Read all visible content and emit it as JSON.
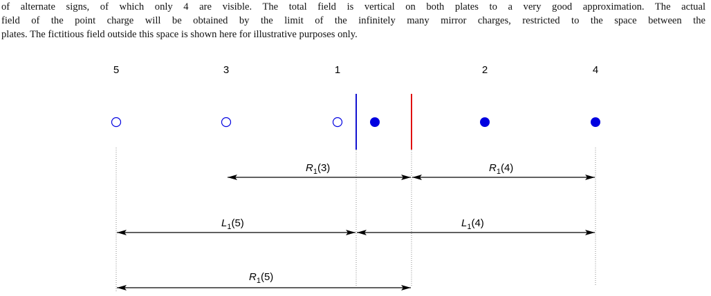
{
  "text": {
    "lines": [
      "of alternate signs, of which only 4 are visible. The total field is vertical on both plates to a very good approximation. The actual",
      "field of the point charge will be obtained by the limit of the infinitely many mirror charges, restricted to the space between the",
      "plates. The fictitious field outside this space is shown here for illustrative purposes only."
    ]
  },
  "figure": {
    "charges": [
      {
        "label": "5"
      },
      {
        "label": "3"
      },
      {
        "label": "1"
      },
      {
        "label": "2"
      },
      {
        "label": "4"
      }
    ],
    "distances": [
      {
        "symbol": "R",
        "subscript": "1",
        "argument": "(3)"
      },
      {
        "symbol": "R",
        "subscript": "1",
        "argument": "(4)"
      },
      {
        "symbol": "L",
        "subscript": "1",
        "argument": "(5)"
      },
      {
        "symbol": "L",
        "subscript": "1",
        "argument": "(4)"
      },
      {
        "symbol": "R",
        "subscript": "1",
        "argument": "(5)"
      }
    ]
  }
}
